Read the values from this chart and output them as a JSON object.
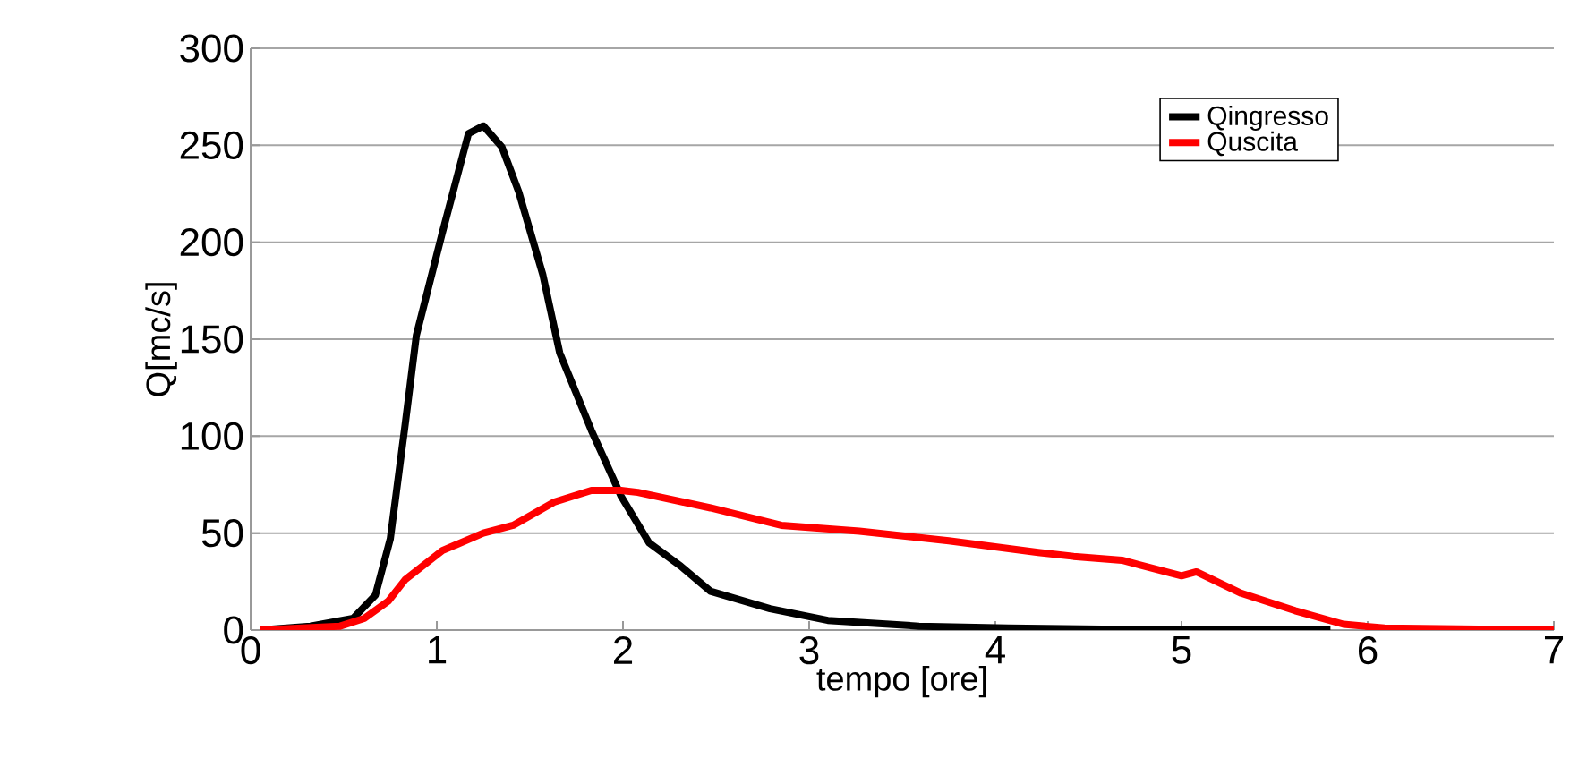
{
  "chart_data": {
    "type": "line",
    "xlabel": "tempo [ore]",
    "ylabel": "Q[mc/s]",
    "xlim": [
      0,
      7
    ],
    "ylim": [
      0,
      300
    ],
    "xticks": [
      0,
      1,
      2,
      3,
      4,
      5,
      6,
      7
    ],
    "yticks": [
      0,
      50,
      100,
      150,
      200,
      250,
      300
    ],
    "grid": "y",
    "legend": "top right",
    "marker": "none",
    "line_style": "solid",
    "series": [
      {
        "name": "Qingresso",
        "color": "#000000",
        "x": [
          0.05,
          0.32,
          0.55,
          0.67,
          0.75,
          0.83,
          0.89,
          1.03,
          1.17,
          1.25,
          1.35,
          1.44,
          1.57,
          1.66,
          1.83,
          1.99,
          2.14,
          2.31,
          2.47,
          2.79,
          3.1,
          3.59,
          4.07,
          5.0,
          5.8
        ],
        "values": [
          0,
          2,
          6,
          18,
          47,
          106,
          152,
          205,
          256,
          260,
          249,
          226,
          183,
          143,
          103,
          69,
          45,
          33,
          20,
          11,
          5,
          2,
          1,
          0,
          0
        ]
      },
      {
        "name": "Quscita",
        "color": "#ff0000",
        "x": [
          0.05,
          0.48,
          0.61,
          0.74,
          0.83,
          1.03,
          1.25,
          1.41,
          1.63,
          1.83,
          1.99,
          2.08,
          2.47,
          2.85,
          3.27,
          3.75,
          4.23,
          4.42,
          4.68,
          5.0,
          5.08,
          5.32,
          5.61,
          5.87,
          6.09,
          7.0
        ],
        "values": [
          0,
          2,
          6,
          15,
          26,
          41,
          50,
          54,
          66,
          72,
          72,
          71,
          63,
          54,
          51,
          46,
          40,
          38,
          36,
          28,
          30,
          19,
          10,
          3,
          1,
          0
        ]
      }
    ]
  }
}
